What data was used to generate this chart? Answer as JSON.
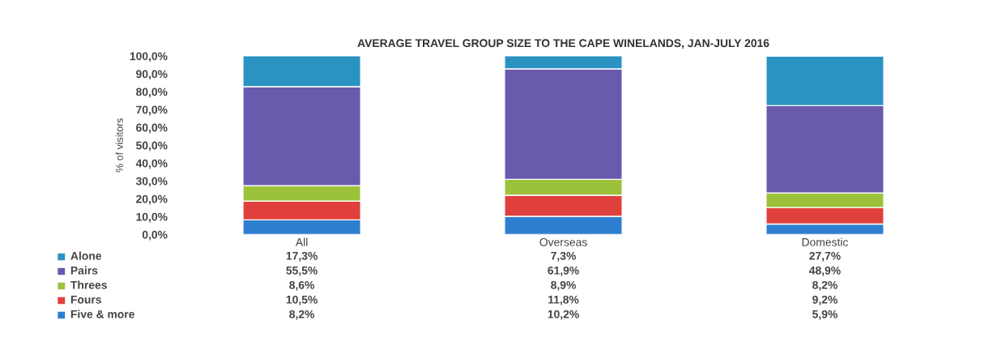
{
  "chart_data": {
    "type": "bar",
    "title": "AVERAGE TRAVEL GROUP SIZE TO THE CAPE WINELANDS, JAN-JULY 2016",
    "ylabel": "% of visitors",
    "categories": [
      "All",
      "Overseas",
      "Domestic"
    ],
    "stacked": true,
    "ylim": [
      0,
      100
    ],
    "yticks": [
      {
        "value": 0,
        "label": "0,0%"
      },
      {
        "value": 10,
        "label": "10,0%"
      },
      {
        "value": 20,
        "label": "20,0%"
      },
      {
        "value": 30,
        "label": "30,0%"
      },
      {
        "value": 40,
        "label": "40,0%"
      },
      {
        "value": 50,
        "label": "50,0%"
      },
      {
        "value": 60,
        "label": "60,0%"
      },
      {
        "value": 70,
        "label": "70,0%"
      },
      {
        "value": 80,
        "label": "80,0%"
      },
      {
        "value": 90,
        "label": "90,0%"
      },
      {
        "value": 100,
        "label": "100,0%"
      }
    ],
    "grid": false,
    "legend": "bottom left",
    "series": [
      {
        "name": "Five & more",
        "color": "#2e7fcf",
        "values": [
          8.2,
          10.2,
          5.9
        ],
        "value_labels": [
          "8,2%",
          "10,2%",
          "5,9%"
        ]
      },
      {
        "name": "Fours",
        "color": "#e0403c",
        "values": [
          10.5,
          11.8,
          9.2
        ],
        "value_labels": [
          "10,5%",
          "11,8%",
          "9,2%"
        ]
      },
      {
        "name": "Threes",
        "color": "#9bc23a",
        "values": [
          8.6,
          8.9,
          8.2
        ],
        "value_labels": [
          "8,6%",
          "8,9%",
          "8,2%"
        ]
      },
      {
        "name": "Pairs",
        "color": "#6a5aad",
        "values": [
          55.5,
          61.9,
          48.9
        ],
        "value_labels": [
          "55,5%",
          "61,9%",
          "48,9%"
        ]
      },
      {
        "name": "Alone",
        "color": "#2a93c2",
        "values": [
          17.3,
          7.3,
          27.7
        ],
        "value_labels": [
          "17,3%",
          "7,3%",
          "27,7%"
        ]
      }
    ]
  }
}
